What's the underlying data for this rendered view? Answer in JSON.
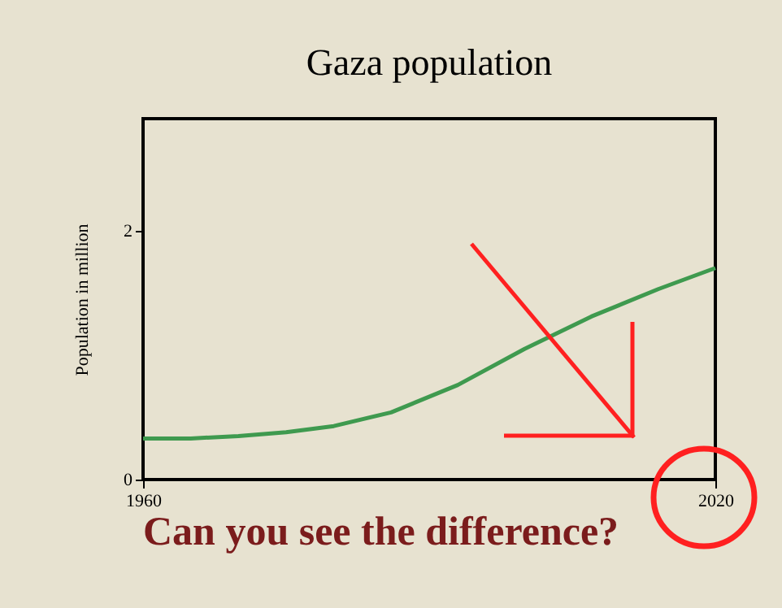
{
  "chart_data": {
    "type": "line",
    "title": "Gaza population",
    "ylabel": "Population in million",
    "x": [
      1960,
      1965,
      1970,
      1975,
      1980,
      1986,
      1993,
      2000,
      2007,
      2014,
      2020
    ],
    "series": [
      {
        "color": "#3f9a4f",
        "values": [
          0.33,
          0.33,
          0.35,
          0.38,
          0.43,
          0.54,
          0.76,
          1.05,
          1.31,
          1.53,
          1.7
        ]
      }
    ],
    "xlim": [
      1960,
      2020
    ],
    "xticks": [
      1960,
      2020
    ],
    "ylim": [
      0,
      2.9
    ],
    "yticks": [
      0,
      2
    ],
    "grid": false,
    "marker": "none",
    "line_style": "solid",
    "annotations": [
      "Can you see the difference?"
    ]
  }
}
